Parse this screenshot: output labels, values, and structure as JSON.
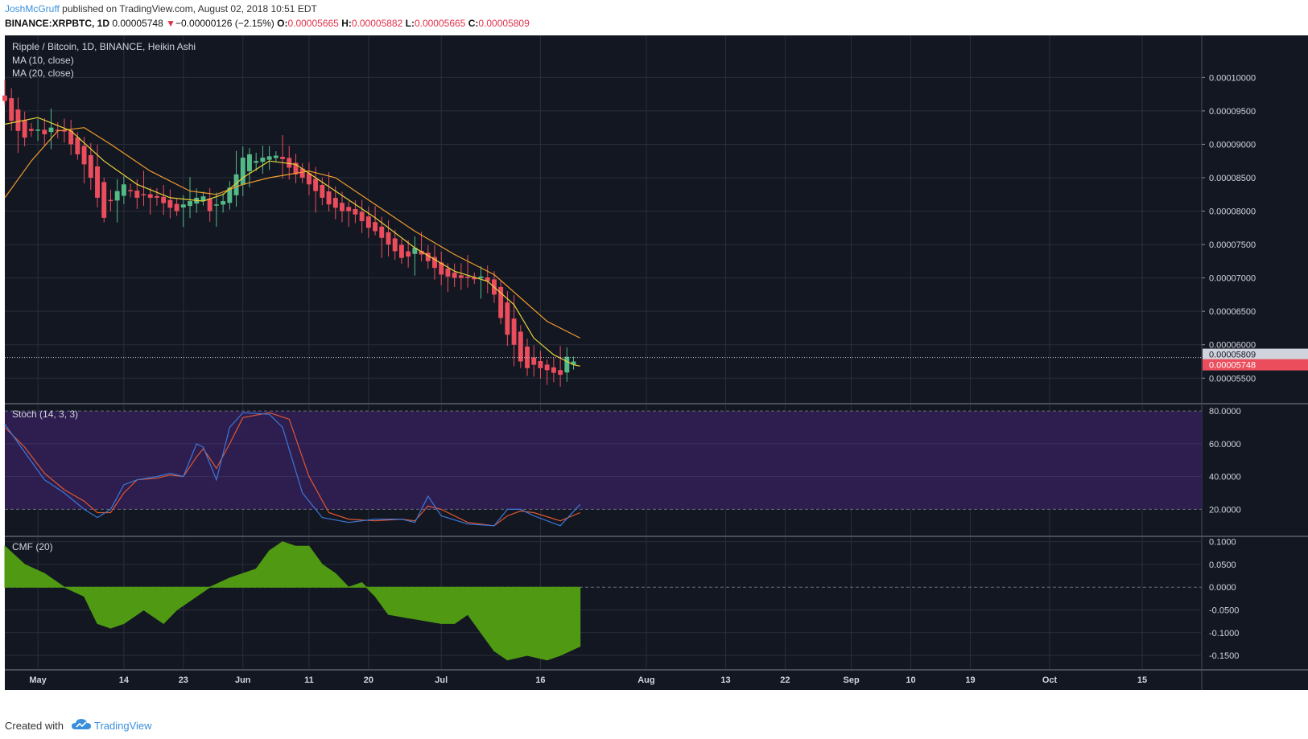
{
  "header": {
    "author": "JoshMcGruff",
    "published": "published on TradingView.com, August 02, 2018 10:51 EDT",
    "symbol": "BINANCE:XRPBTC, 1D",
    "last": "0.00005748",
    "change_arrow": "▼",
    "change": "−0.00000126 (−2.15%)",
    "o_label": "O:",
    "o": "0.00005665",
    "h_label": "H:",
    "h": "0.00005882",
    "l_label": "L:",
    "l": "0.00005665",
    "c_label": "C:",
    "c": "0.00005809"
  },
  "footer": {
    "created": "Created with",
    "brand": "TradingView",
    "icon": "tradingview-cloud-icon"
  },
  "colors": {
    "background": "#131722",
    "grid": "#2a2e39",
    "up": "#53b987",
    "down": "#eb4d5c",
    "ma10": "#e8d33a",
    "ma20": "#f29b2b",
    "stoch_k": "#3c78d8",
    "stoch_d": "#e0572f",
    "stoch_band": "#2d1e4f",
    "cmf": "#4f9a12"
  },
  "chart_data": {
    "type": "candlestick",
    "title": "Ripple / Bitcoin, 1D, BINANCE, Heikin Ashi",
    "indicators": [
      "MA (10, close)",
      "MA (20, close)"
    ],
    "price_axis": {
      "ticks": [
        "0.00010000",
        "0.00009500",
        "0.00009000",
        "0.00008500",
        "0.00008000",
        "0.00007500",
        "0.00007000",
        "0.00006500",
        "0.00006000",
        "0.00005500"
      ],
      "range": [
        5.13e-05,
        0.0001063
      ]
    },
    "last_price_labels": [
      {
        "text": "0.00005809",
        "value": 5.809e-05,
        "color": "#d1d4dc"
      },
      {
        "text": "0.00005748",
        "value": 5.748e-05,
        "color": "#eb4d5c"
      }
    ],
    "x_axis": {
      "start": "2018-04-26",
      "end": "2018-10-24",
      "ticks": [
        {
          "label": "May",
          "date": "2018-05-01"
        },
        {
          "label": "14",
          "date": "2018-05-14"
        },
        {
          "label": "23",
          "date": "2018-05-23"
        },
        {
          "label": "Jun",
          "date": "2018-06-01"
        },
        {
          "label": "11",
          "date": "2018-06-11"
        },
        {
          "label": "20",
          "date": "2018-06-20"
        },
        {
          "label": "Jul",
          "date": "2018-07-01"
        },
        {
          "label": "16",
          "date": "2018-07-16"
        },
        {
          "label": "Aug",
          "date": "2018-08-01"
        },
        {
          "label": "13",
          "date": "2018-08-13"
        },
        {
          "label": "22",
          "date": "2018-08-22"
        },
        {
          "label": "Sep",
          "date": "2018-09-01"
        },
        {
          "label": "10",
          "date": "2018-09-10"
        },
        {
          "label": "19",
          "date": "2018-09-19"
        },
        {
          "label": "Oct",
          "date": "2018-10-01"
        },
        {
          "label": "15",
          "date": "2018-10-15"
        }
      ]
    },
    "first_candle_date": "2018-04-26",
    "closes": [
      9.65,
      9.35,
      9.2,
      9.1,
      9.2,
      9.22,
      9.15,
      9.25,
      9.2,
      9.2,
      9.0,
      8.85,
      8.7,
      8.5,
      8.2,
      7.9,
      8.15,
      8.3,
      8.4,
      8.3,
      8.2,
      8.25,
      8.2,
      8.2,
      8.12,
      8.05,
      8.0,
      8.1,
      8.15,
      8.2,
      8.22,
      8.0,
      8.1,
      8.15,
      8.35,
      8.55,
      8.8,
      8.85,
      8.75,
      8.8,
      8.82,
      8.83,
      8.78,
      8.65,
      8.55,
      8.5,
      8.4,
      8.3,
      8.2,
      8.1,
      8.05,
      8.0,
      8.0,
      7.95,
      7.85,
      7.75,
      7.7,
      7.6,
      7.5,
      7.4,
      7.3,
      7.32,
      7.45,
      7.35,
      7.25,
      7.15,
      7.05,
      7.02,
      7.0,
      7.0,
      7.0,
      6.98,
      7.02,
      6.95,
      6.75,
      6.4,
      6.15,
      6.0,
      5.75,
      5.65,
      5.7,
      5.65,
      5.62,
      5.58,
      5.55,
      5.82,
      5.75
    ],
    "ma10_points": [
      [
        0,
        9.3
      ],
      [
        5,
        9.4
      ],
      [
        10,
        9.2
      ],
      [
        15,
        8.75
      ],
      [
        20,
        8.4
      ],
      [
        25,
        8.2
      ],
      [
        30,
        8.15
      ],
      [
        33,
        8.25
      ],
      [
        36,
        8.5
      ],
      [
        40,
        8.75
      ],
      [
        44,
        8.7
      ],
      [
        50,
        8.3
      ],
      [
        56,
        7.9
      ],
      [
        62,
        7.45
      ],
      [
        68,
        7.1
      ],
      [
        73,
        6.95
      ],
      [
        77,
        6.6
      ],
      [
        80,
        6.1
      ],
      [
        83,
        5.85
      ],
      [
        86,
        5.7
      ],
      [
        87,
        5.68
      ]
    ],
    "ma20_points": [
      [
        0,
        8.2
      ],
      [
        4,
        8.75
      ],
      [
        8,
        9.2
      ],
      [
        12,
        9.25
      ],
      [
        16,
        9.0
      ],
      [
        22,
        8.6
      ],
      [
        28,
        8.3
      ],
      [
        32,
        8.25
      ],
      [
        36,
        8.4
      ],
      [
        40,
        8.5
      ],
      [
        46,
        8.6
      ],
      [
        50,
        8.5
      ],
      [
        56,
        8.1
      ],
      [
        62,
        7.7
      ],
      [
        68,
        7.35
      ],
      [
        74,
        7.05
      ],
      [
        78,
        6.7
      ],
      [
        82,
        6.35
      ],
      [
        87,
        6.1
      ]
    ],
    "stoch": {
      "label": "Stoch (14, 3, 3)",
      "axis_ticks": [
        "80.0000",
        "60.0000",
        "40.0000",
        "20.0000"
      ],
      "range": [
        4,
        84
      ],
      "bands": [
        20,
        80
      ],
      "k": [
        [
          0,
          72
        ],
        [
          3,
          55
        ],
        [
          6,
          38
        ],
        [
          9,
          30
        ],
        [
          12,
          20
        ],
        [
          14,
          15
        ],
        [
          16,
          20
        ],
        [
          18,
          35
        ],
        [
          20,
          38
        ],
        [
          23,
          40
        ],
        [
          25,
          42
        ],
        [
          27,
          40
        ],
        [
          29,
          60
        ],
        [
          30,
          58
        ],
        [
          32,
          38
        ],
        [
          34,
          70
        ],
        [
          36,
          79
        ],
        [
          40,
          78
        ],
        [
          42,
          70
        ],
        [
          45,
          30
        ],
        [
          48,
          15
        ],
        [
          52,
          12
        ],
        [
          56,
          14
        ],
        [
          60,
          14
        ],
        [
          62,
          12
        ],
        [
          64,
          28
        ],
        [
          66,
          16
        ],
        [
          70,
          11
        ],
        [
          74,
          10
        ],
        [
          76,
          20
        ],
        [
          78,
          20
        ],
        [
          80,
          16
        ],
        [
          84,
          10
        ],
        [
          87,
          23
        ]
      ],
      "d": [
        [
          0,
          70
        ],
        [
          3,
          58
        ],
        [
          6,
          42
        ],
        [
          9,
          32
        ],
        [
          12,
          25
        ],
        [
          14,
          18
        ],
        [
          16,
          18
        ],
        [
          18,
          30
        ],
        [
          20,
          38
        ],
        [
          23,
          39
        ],
        [
          25,
          41
        ],
        [
          27,
          40
        ],
        [
          29,
          52
        ],
        [
          30,
          57
        ],
        [
          32,
          45
        ],
        [
          34,
          60
        ],
        [
          36,
          76
        ],
        [
          40,
          79
        ],
        [
          43,
          75
        ],
        [
          46,
          40
        ],
        [
          49,
          18
        ],
        [
          52,
          14
        ],
        [
          56,
          13
        ],
        [
          60,
          14
        ],
        [
          62,
          13
        ],
        [
          64,
          22
        ],
        [
          66,
          20
        ],
        [
          70,
          12
        ],
        [
          74,
          10
        ],
        [
          76,
          16
        ],
        [
          78,
          19
        ],
        [
          80,
          18
        ],
        [
          84,
          13
        ],
        [
          87,
          18
        ]
      ]
    },
    "cmf": {
      "label": "CMF (20)",
      "axis_ticks": [
        "0.1000",
        "0.0500",
        "0.0000",
        "-0.0500",
        "-0.1000",
        "-0.1500"
      ],
      "range": [
        -0.18,
        0.11
      ],
      "values": [
        [
          0,
          0.09
        ],
        [
          3,
          0.05
        ],
        [
          6,
          0.03
        ],
        [
          9,
          0.0
        ],
        [
          12,
          -0.02
        ],
        [
          14,
          -0.08
        ],
        [
          16,
          -0.09
        ],
        [
          18,
          -0.08
        ],
        [
          21,
          -0.05
        ],
        [
          24,
          -0.08
        ],
        [
          26,
          -0.05
        ],
        [
          28,
          -0.03
        ],
        [
          31,
          0.0
        ],
        [
          34,
          0.02
        ],
        [
          36,
          0.03
        ],
        [
          38,
          0.04
        ],
        [
          40,
          0.08
        ],
        [
          42,
          0.1
        ],
        [
          44,
          0.09
        ],
        [
          46,
          0.09
        ],
        [
          48,
          0.05
        ],
        [
          50,
          0.03
        ],
        [
          52,
          0.0
        ],
        [
          54,
          0.01
        ],
        [
          56,
          -0.02
        ],
        [
          58,
          -0.06
        ],
        [
          62,
          -0.07
        ],
        [
          66,
          -0.08
        ],
        [
          68,
          -0.08
        ],
        [
          70,
          -0.06
        ],
        [
          72,
          -0.1
        ],
        [
          74,
          -0.14
        ],
        [
          76,
          -0.16
        ],
        [
          79,
          -0.15
        ],
        [
          82,
          -0.16
        ],
        [
          84,
          -0.15
        ],
        [
          87,
          -0.13
        ]
      ]
    }
  }
}
